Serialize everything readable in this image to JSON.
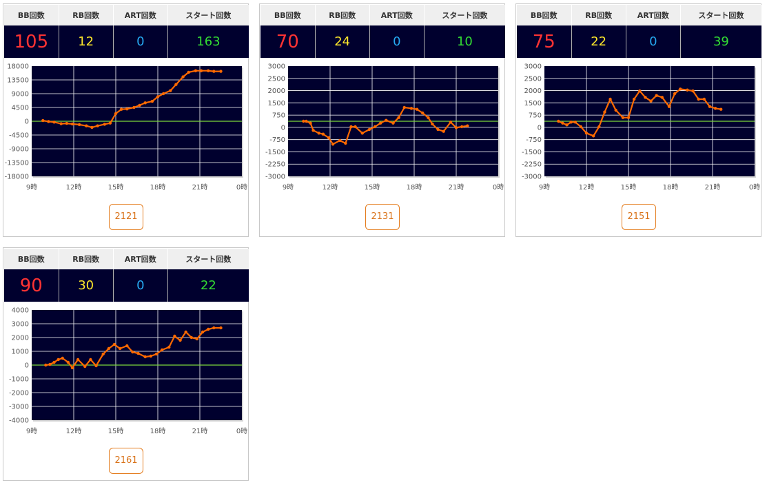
{
  "headers": {
    "bb": "BB回数",
    "rb": "RB回数",
    "art": "ART回数",
    "start": "スタート回数"
  },
  "colors": {
    "chart_bg": "#00002e",
    "grid": "#ffffff",
    "zero_line": "#7cd83c",
    "series": "#ff6a00",
    "bb": "#ff3333",
    "rb": "#ffe92b",
    "art": "#26a9f2",
    "start": "#33dd33",
    "button": "#e47d1f"
  },
  "machines": [
    {
      "id": "2121",
      "bb": "105",
      "rb": "12",
      "art": "0",
      "start": "163"
    },
    {
      "id": "2131",
      "bb": "70",
      "rb": "24",
      "art": "0",
      "start": "10"
    },
    {
      "id": "2151",
      "bb": "75",
      "rb": "22",
      "art": "0",
      "start": "39"
    },
    {
      "id": "2161",
      "bb": "90",
      "rb": "30",
      "art": "0",
      "start": "22"
    }
  ],
  "chart_data": [
    {
      "type": "line",
      "xlim": [
        9,
        24
      ],
      "x_ticks": [
        "9時",
        "12時",
        "15時",
        "18時",
        "21時",
        "0時"
      ],
      "ylim": [
        -18000,
        18000
      ],
      "y_ticks": [
        "18000",
        "13500",
        "9000",
        "4500",
        "0",
        "-4500",
        "-9000",
        "-13500",
        "-18000"
      ],
      "grid": true,
      "x": [
        9.8,
        10.2,
        10.6,
        11.1,
        11.5,
        11.9,
        12.4,
        12.9,
        13.3,
        13.7,
        14.2,
        14.6,
        15.0,
        15.4,
        15.8,
        16.3,
        16.7,
        17.1,
        17.6,
        18.0,
        18.4,
        18.9,
        19.3,
        19.8,
        20.2,
        20.7,
        21.1,
        21.6,
        22.0,
        22.5
      ],
      "series": [
        {
          "values": [
            200,
            -100,
            -300,
            -800,
            -700,
            -900,
            -1100,
            -1500,
            -2000,
            -1500,
            -1000,
            -600,
            2500,
            3900,
            4000,
            4500,
            5200,
            6000,
            6500,
            8000,
            9000,
            10000,
            12000,
            14500,
            16000,
            16500,
            16500,
            16500,
            16300,
            16300
          ]
        }
      ]
    },
    {
      "type": "line",
      "xlim": [
        9,
        24
      ],
      "x_ticks": [
        "9時",
        "12時",
        "15時",
        "18時",
        "21時",
        "0時"
      ],
      "ylim": [
        -3000,
        3000
      ],
      "y_ticks": [
        "3000",
        "2500",
        "2000",
        "1500",
        "750",
        "0",
        "-750",
        "-1500",
        "-2250",
        "-3000"
      ],
      "grid": true,
      "x": [
        10.1,
        10.3,
        10.6,
        10.8,
        11.2,
        11.5,
        11.9,
        12.2,
        12.7,
        13.1,
        13.5,
        13.8,
        14.3,
        14.8,
        15.2,
        15.6,
        16.0,
        16.5,
        16.9,
        17.3,
        17.8,
        18.2,
        18.6,
        19.0,
        19.3,
        19.7,
        20.1,
        20.6,
        21.0,
        21.4,
        21.8
      ],
      "series": [
        {
          "values": [
            0,
            0,
            -100,
            -500,
            -650,
            -700,
            -900,
            -1250,
            -1050,
            -1200,
            -300,
            -300,
            -650,
            -450,
            -300,
            -100,
            50,
            -100,
            200,
            750,
            700,
            650,
            450,
            200,
            -150,
            -450,
            -550,
            -50,
            -350,
            -300,
            -250
          ]
        }
      ]
    },
    {
      "type": "line",
      "xlim": [
        9,
        24
      ],
      "x_ticks": [
        "9時",
        "12時",
        "15時",
        "18時",
        "21時",
        "0時"
      ],
      "ylim": [
        -3000,
        3000
      ],
      "y_ticks": [
        "3000",
        "2500",
        "2000",
        "1500",
        "750",
        "0",
        "-750",
        "-1500",
        "-2250",
        "-3000"
      ],
      "grid": true,
      "x": [
        10.0,
        10.3,
        10.6,
        10.9,
        11.2,
        11.6,
        12.0,
        12.5,
        12.9,
        13.3,
        13.7,
        14.1,
        14.6,
        15.0,
        15.4,
        15.8,
        16.2,
        16.6,
        17.0,
        17.4,
        17.9,
        18.3,
        18.7,
        19.2,
        19.6,
        20.0,
        20.4,
        20.8,
        21.2,
        21.6
      ],
      "series": [
        {
          "values": [
            0,
            -100,
            -200,
            -50,
            -50,
            -300,
            -650,
            -800,
            -300,
            500,
            1200,
            600,
            200,
            200,
            1200,
            1650,
            1300,
            1100,
            1400,
            1300,
            800,
            1500,
            1750,
            1700,
            1650,
            1200,
            1200,
            800,
            700,
            650
          ]
        }
      ]
    },
    {
      "type": "line",
      "xlim": [
        9,
        24
      ],
      "x_ticks": [
        "9時",
        "12時",
        "15時",
        "18時",
        "21時",
        "0時"
      ],
      "ylim": [
        -4000,
        4000
      ],
      "y_ticks": [
        "4000",
        "3000",
        "2000",
        "1000",
        "0",
        "-1000",
        "-2000",
        "-3000",
        "-4000"
      ],
      "grid": true,
      "x": [
        10.0,
        10.3,
        10.6,
        10.9,
        11.2,
        11.6,
        11.9,
        12.3,
        12.8,
        13.2,
        13.6,
        14.1,
        14.5,
        14.9,
        15.3,
        15.8,
        16.2,
        16.6,
        17.1,
        17.5,
        17.9,
        18.3,
        18.8,
        19.2,
        19.6,
        20.0,
        20.4,
        20.8,
        21.2,
        21.6,
        22.0,
        22.5
      ],
      "series": [
        {
          "values": [
            0,
            50,
            200,
            400,
            500,
            200,
            -200,
            400,
            -100,
            400,
            -50,
            800,
            1200,
            1500,
            1200,
            1400,
            950,
            850,
            600,
            650,
            800,
            1100,
            1300,
            2100,
            1800,
            2400,
            2000,
            1900,
            2400,
            2600,
            2700,
            2700
          ]
        }
      ]
    }
  ]
}
